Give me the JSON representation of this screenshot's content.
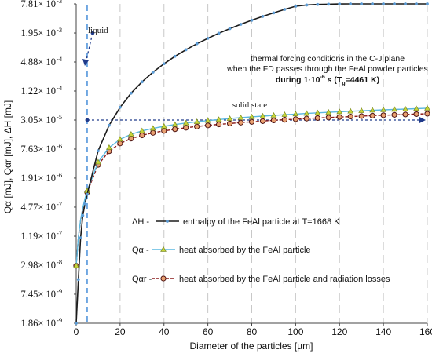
{
  "chart_data": {
    "type": "line",
    "xlabel": "Diameter of the particles [µm]",
    "ylabel": "Qα [mJ],  Qαr [mJ],  ΔH [mJ]",
    "xlim": [
      0,
      160
    ],
    "ylim": [
      1.86e-09,
      0.00781
    ],
    "log_y": true,
    "x_ticks": [
      "0",
      "20",
      "40",
      "60",
      "80",
      "100",
      "120",
      "140",
      "160"
    ],
    "y_ticks": [
      {
        "v": 1.86e-09,
        "m": "1.86",
        "e": "-9"
      },
      {
        "v": 7.45e-09,
        "m": "7.45",
        "e": "-9"
      },
      {
        "v": 2.98e-08,
        "m": "2.98",
        "e": "-8"
      },
      {
        "v": 1.19e-07,
        "m": "1.19",
        "e": "-7"
      },
      {
        "v": 4.77e-07,
        "m": "4.77",
        "e": "-7"
      },
      {
        "v": 1.91e-06,
        "m": "1.91",
        "e": "-6"
      },
      {
        "v": 7.63e-06,
        "m": "7.63",
        "e": "-6"
      },
      {
        "v": 3.05e-05,
        "m": "3.05",
        "e": "-5"
      },
      {
        "v": 0.000122,
        "m": "1.22",
        "e": "-4"
      },
      {
        "v": 0.000488,
        "m": "4.88",
        "e": "-4"
      },
      {
        "v": 0.00195,
        "m": "1.95",
        "e": "-3"
      },
      {
        "v": 0.00781,
        "m": "7.81",
        "e": "-3"
      }
    ],
    "grid": "vertical dashed",
    "series": [
      {
        "name": "enthalpy of the FeAl particle at T=1668 K",
        "key_label": "ΔH -",
        "color": "#1b1b1b",
        "marker": "#5b9bd5",
        "marker_shape": "dot",
        "x": [
          0,
          1,
          2,
          3,
          4,
          5,
          10,
          15,
          20,
          25,
          30,
          35,
          40,
          45,
          50,
          55,
          60,
          65,
          70,
          75,
          80,
          85,
          90,
          95,
          100,
          105,
          110,
          115,
          120,
          125,
          130,
          135,
          140,
          145,
          150,
          155,
          160
        ],
        "y": [
          1.86e-09,
          1.5e-08,
          1.1e-07,
          3.2e-07,
          5.6e-07,
          8.8e-07,
          7e-06,
          2.37e-05,
          5.6e-05,
          0.00011,
          0.000189,
          0.0003,
          0.000448,
          0.00064,
          0.000875,
          0.00117,
          0.00151,
          0.00192,
          0.0024,
          0.00295,
          0.00358,
          0.0043,
          0.0051,
          0.006,
          0.00699,
          0.0074,
          0.0076,
          0.0077,
          0.00778,
          0.00781,
          0.00781,
          0.00781,
          0.00781,
          0.00781,
          0.00781,
          0.00781,
          0.00781
        ]
      },
      {
        "name": "heat absorbed by the FeAl particle",
        "key_label": "Qα -",
        "color": "#5bb8e0",
        "marker": "#c8d63a",
        "marker_shape": "triangle",
        "x": [
          0,
          1,
          2,
          3,
          4,
          5,
          10,
          15,
          20,
          25,
          30,
          35,
          40,
          45,
          50,
          55,
          60,
          65,
          70,
          75,
          80,
          85,
          90,
          95,
          100,
          105,
          110,
          115,
          120,
          125,
          130,
          135,
          140,
          145,
          150,
          155,
          160
        ],
        "y": [
          2.9e-08,
          1.15e-07,
          2.6e-07,
          4.6e-07,
          7.2e-07,
          1.04e-06,
          4.1e-06,
          8.2e-06,
          1.22e-05,
          1.55e-05,
          1.82e-05,
          2.05e-05,
          2.26e-05,
          2.46e-05,
          2.64e-05,
          2.81e-05,
          2.97e-05,
          3.12e-05,
          3.27e-05,
          3.41e-05,
          3.55e-05,
          3.68e-05,
          3.81e-05,
          3.94e-05,
          4.06e-05,
          4.18e-05,
          4.3e-05,
          4.42e-05,
          4.53e-05,
          4.64e-05,
          4.75e-05,
          4.86e-05,
          4.96e-05,
          5.06e-05,
          5.16e-05,
          5.26e-05,
          5.36e-05
        ]
      },
      {
        "name": "heat absorbed by the FeAl particle and radiation losses",
        "key_label": "Qαr -",
        "color": "#8b1a1a",
        "marker": "#e8a070",
        "marker_shape": "circle",
        "x": [
          0,
          1,
          2,
          3,
          4,
          5,
          10,
          15,
          20,
          25,
          30,
          35,
          40,
          45,
          50,
          55,
          60,
          65,
          70,
          75,
          80,
          85,
          90,
          95,
          100,
          105,
          110,
          115,
          120,
          125,
          130,
          135,
          140,
          145,
          150,
          155,
          160
        ],
        "y": [
          2.9e-08,
          1.13e-07,
          2.5e-07,
          4.4e-07,
          6.8e-07,
          9.7e-07,
          3.6e-06,
          6.9e-06,
          1e-05,
          1.26e-05,
          1.47e-05,
          1.66e-05,
          1.82e-05,
          1.97e-05,
          2.11e-05,
          2.24e-05,
          2.36e-05,
          2.48e-05,
          2.59e-05,
          2.7e-05,
          2.8e-05,
          2.9e-05,
          3e-05,
          3.09e-05,
          3.18e-05,
          3.27e-05,
          3.36e-05,
          3.44e-05,
          3.52e-05,
          3.6e-05,
          3.68e-05,
          3.76e-05,
          3.84e-05,
          3.91e-05,
          3.98e-05,
          4.05e-05,
          4.12e-05
        ]
      }
    ],
    "annotations": {
      "liquid": "liquid",
      "solid": "solid state",
      "forcing_line1": "thermal forcing conditions in the C-J plane",
      "forcing_line2": "when the FD passes through the FeAl powder particles",
      "forcing_line3_a": "during 1·10",
      "forcing_line3_exp": "-6",
      "forcing_line3_b": " s (T",
      "forcing_line3_sub": "g",
      "forcing_line3_c": "=4461 K)",
      "vline_x": 5,
      "liquid_point": {
        "x": 5,
        "y": 0.00195
      },
      "solid_point": {
        "x": 5,
        "y": 3.05e-05
      }
    }
  }
}
